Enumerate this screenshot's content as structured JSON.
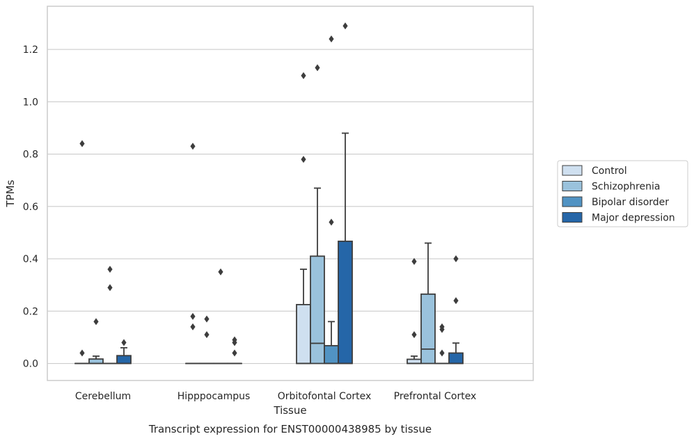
{
  "chart_data": {
    "type": "box",
    "caption": "Transcript expression for ENST00000438985 by tissue",
    "xlabel": "Tissue",
    "ylabel": "TPMs",
    "ylim": [
      -0.065,
      1.365
    ],
    "yticks": [
      0.0,
      0.2,
      0.4,
      0.6,
      0.8,
      1.0,
      1.2
    ],
    "ytick_labels": [
      "0.0",
      "0.2",
      "0.4",
      "0.6",
      "0.8",
      "1.0",
      "1.2"
    ],
    "grid": "horizontal",
    "legend_placement": "right-center",
    "categories": [
      "Cerebellum",
      "Hipppocampus",
      "Orbitofontal Cortex",
      "Prefrontal Cortex"
    ],
    "series": [
      {
        "name": "Control",
        "color": "#cfe0f0",
        "boxes": [
          {
            "q1": 0.0,
            "median": 0.0,
            "q3": 0.0,
            "whisker_low": 0.0,
            "whisker_high": 0.0,
            "outliers": [
              0.04,
              0.84
            ]
          },
          {
            "q1": 0.0,
            "median": 0.0,
            "q3": 0.0,
            "whisker_low": 0.0,
            "whisker_high": 0.0,
            "outliers": [
              0.14,
              0.18,
              0.83
            ]
          },
          {
            "q1": 0.0,
            "median": 0.0,
            "q3": 0.225,
            "whisker_low": 0.0,
            "whisker_high": 0.36,
            "outliers": [
              0.78,
              1.1
            ]
          },
          {
            "q1": 0.0,
            "median": 0.0,
            "q3": 0.016,
            "whisker_low": 0.0,
            "whisker_high": 0.028,
            "outliers": [
              0.11,
              0.39
            ]
          }
        ]
      },
      {
        "name": "Schizophrenia",
        "color": "#9ac2dc",
        "boxes": [
          {
            "q1": 0.0,
            "median": 0.0,
            "q3": 0.017,
            "whisker_low": 0.0,
            "whisker_high": 0.028,
            "outliers": [
              0.16
            ]
          },
          {
            "q1": 0.0,
            "median": 0.0,
            "q3": 0.0,
            "whisker_low": 0.0,
            "whisker_high": 0.0,
            "outliers": [
              0.11,
              0.17
            ]
          },
          {
            "q1": 0.0,
            "median": 0.077,
            "q3": 0.41,
            "whisker_low": 0.0,
            "whisker_high": 0.67,
            "outliers": [
              1.13
            ]
          },
          {
            "q1": 0.0,
            "median": 0.055,
            "q3": 0.265,
            "whisker_low": 0.0,
            "whisker_high": 0.46,
            "outliers": []
          }
        ]
      },
      {
        "name": "Bipolar disorder",
        "color": "#5193c3",
        "boxes": [
          {
            "q1": 0.0,
            "median": 0.0,
            "q3": 0.0,
            "whisker_low": 0.0,
            "whisker_high": 0.0,
            "outliers": [
              0.29,
              0.36
            ]
          },
          {
            "q1": 0.0,
            "median": 0.0,
            "q3": 0.0,
            "whisker_low": 0.0,
            "whisker_high": 0.0,
            "outliers": [
              0.35
            ]
          },
          {
            "q1": 0.0,
            "median": 0.0,
            "q3": 0.068,
            "whisker_low": 0.0,
            "whisker_high": 0.16,
            "outliers": [
              0.54,
              1.24
            ]
          },
          {
            "q1": 0.0,
            "median": 0.0,
            "q3": 0.0,
            "whisker_low": 0.0,
            "whisker_high": 0.0,
            "outliers": [
              0.04,
              0.13,
              0.14
            ]
          }
        ]
      },
      {
        "name": "Major depression",
        "color": "#2566a8",
        "boxes": [
          {
            "q1": 0.0,
            "median": 0.0,
            "q3": 0.03,
            "whisker_low": 0.0,
            "whisker_high": 0.06,
            "outliers": [
              0.08
            ]
          },
          {
            "q1": 0.0,
            "median": 0.0,
            "q3": 0.0,
            "whisker_low": 0.0,
            "whisker_high": 0.0,
            "outliers": [
              0.04,
              0.08,
              0.09
            ]
          },
          {
            "q1": 0.0,
            "median": 0.0,
            "q3": 0.467,
            "whisker_low": 0.0,
            "whisker_high": 0.88,
            "outliers": [
              1.29
            ]
          },
          {
            "q1": 0.0,
            "median": 0.0,
            "q3": 0.04,
            "whisker_low": 0.0,
            "whisker_high": 0.078,
            "outliers": [
              0.24,
              0.4
            ]
          }
        ]
      }
    ]
  }
}
